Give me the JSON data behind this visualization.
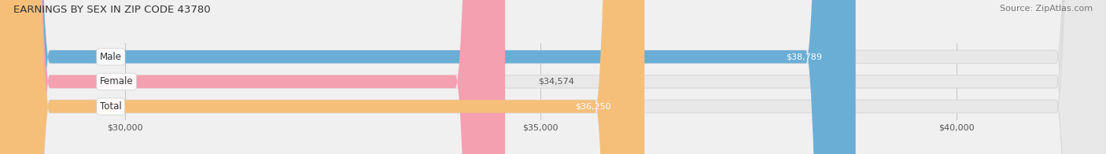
{
  "title": "EARNINGS BY SEX IN ZIP CODE 43780",
  "source": "Source: ZipAtlas.com",
  "categories": [
    "Male",
    "Female",
    "Total"
  ],
  "values": [
    38789,
    34574,
    36250
  ],
  "bar_colors": [
    "#6aaed6",
    "#f4a0b0",
    "#f5bf7a"
  ],
  "label_inside": [
    true,
    false,
    true
  ],
  "label_text_colors_inside": [
    "#ffffff",
    "#555555",
    "#ffffff"
  ],
  "xlim_left": 28500,
  "xlim_right": 41800,
  "xticks": [
    30000,
    35000,
    40000
  ],
  "xticklabels": [
    "$30,000",
    "$35,000",
    "$40,000"
  ],
  "bar_height": 0.52,
  "bar_gap": 0.18,
  "figsize": [
    14.06,
    1.96
  ],
  "dpi": 100,
  "background_color": "#f0f0f0",
  "bg_bar_color": "#e8e8e8",
  "bg_bar_edge_color": "#d8d8d8",
  "title_fontsize": 9.5,
  "source_fontsize": 8,
  "label_fontsize": 8,
  "category_fontsize": 8.5,
  "tick_fontsize": 8
}
